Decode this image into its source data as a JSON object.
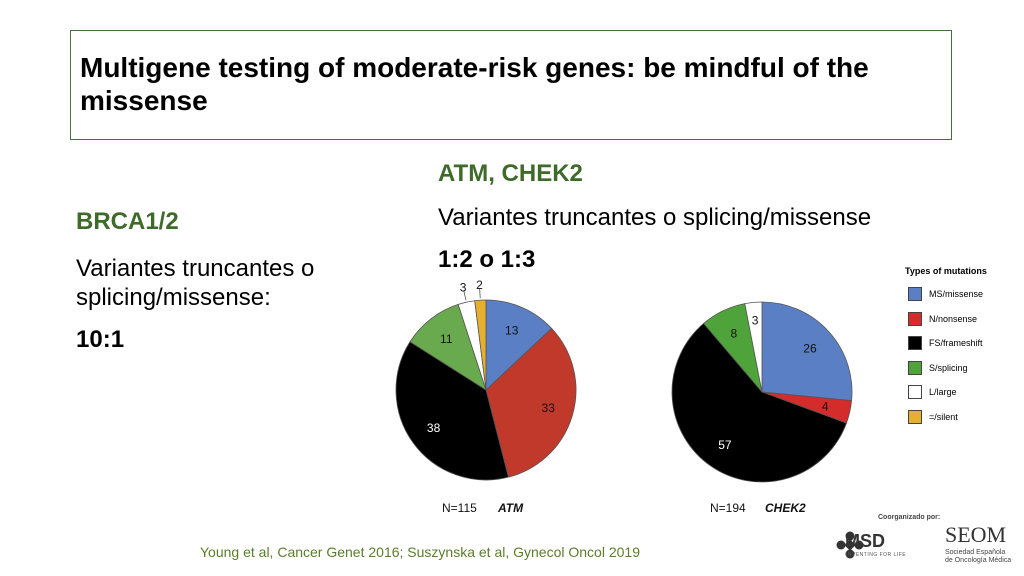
{
  "title": "Multigene testing of moderate-risk genes: be mindful of the missense",
  "left": {
    "heading": "BRCA1/2",
    "text": "Variantes truncantes o splicing/missense:",
    "ratio": "10:1"
  },
  "right": {
    "heading": "ATM, CHEK2",
    "text": "Variantes truncantes o splicing/missense",
    "ratio": "1:2 o 1:3"
  },
  "citation": "Young et al, Cancer Genet 2016; Suszynska  et al, Gynecol Oncol  2019",
  "logos": {
    "coorganized": "Coorganizado por:",
    "msd": "MSD",
    "msd_tagline": "INVENTING FOR LIFE",
    "seom": "SEOM",
    "seom_line1": "Sociedad Española",
    "seom_line2": "de Oncología Médica"
  },
  "legend": {
    "title": "Types of mutations",
    "items": [
      {
        "label": "MS/missense",
        "color": "#5b7fc4"
      },
      {
        "label": "N/nonsense",
        "color": "#d42b2b"
      },
      {
        "label": "FS/frameshift",
        "color": "#000000"
      },
      {
        "label": "S/splicing",
        "color": "#4ea43a"
      },
      {
        "label": "L/large",
        "color": "#ffffff"
      },
      {
        "label": "=/silent",
        "color": "#e6b02e"
      }
    ]
  },
  "chart_data": [
    {
      "type": "pie",
      "n_label": "N=115",
      "gene": "ATM",
      "slices": [
        {
          "category": "MS/missense",
          "value": 13,
          "color": "#5b7fc4"
        },
        {
          "category": "N/nonsense",
          "value": 33,
          "color": "#c0392b"
        },
        {
          "category": "FS/frameshift",
          "value": 38,
          "color": "#000000"
        },
        {
          "category": "S/splicing",
          "value": 11,
          "color": "#6aaa4e"
        },
        {
          "category": "L/large",
          "value": 3,
          "color": "#ffffff"
        },
        {
          "category": "=/silent",
          "value": 2,
          "color": "#e6b02e"
        }
      ]
    },
    {
      "type": "pie",
      "n_label": "N=194",
      "gene": "CHEK2",
      "slices": [
        {
          "category": "MS/missense",
          "value": 26,
          "color": "#5b7fc4"
        },
        {
          "category": "N/nonsense",
          "value": 4,
          "color": "#d42b2b"
        },
        {
          "category": "FS/frameshift",
          "value": 57,
          "color": "#000000"
        },
        {
          "category": "S/splicing",
          "value": 8,
          "color": "#4ea43a"
        },
        {
          "category": "L/large",
          "value": 3,
          "color": "#ffffff"
        }
      ]
    }
  ]
}
